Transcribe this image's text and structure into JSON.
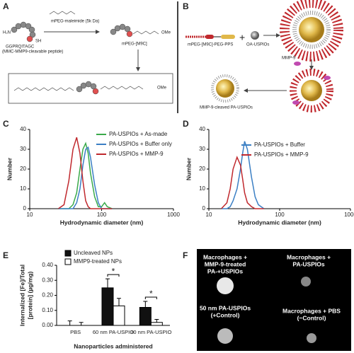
{
  "panels": {
    "a": {
      "label": "A",
      "h2n": "H₂N",
      "sh": "SH",
      "peptide": "GGPRQITAGC",
      "peptide_note": "(MMC-MMP9-cleavable peptide)",
      "reagent": "mPEG-maleimide (5k Da)",
      "product": "mPEG-[M9C]",
      "ome": "OMe"
    },
    "b": {
      "label": "B",
      "polymer": "mPEG-[M9C]-PEG-PPS",
      "plus": "+",
      "core": "OA-USPIOs",
      "enzyme": "MMP-9",
      "result": "MMP-9-cleaved PA-USPIOs"
    },
    "f": {
      "label": "F",
      "wells": [
        [
          "Macrophages +",
          "MMP-9-treated",
          "PA-+USPIOs"
        ],
        [
          "Macrophages +",
          "PA-USPIOs"
        ],
        [
          "50 nm PA-USPIOs",
          "(+Control)"
        ],
        [
          "Macrophages + PBS",
          "(−Control)"
        ]
      ]
    }
  },
  "chart_data": [
    {
      "type": "line",
      "label": "C",
      "xlabel": "Hydrodynamic diameter (nm)",
      "ylabel": "Number",
      "log_x": true,
      "xlim": [
        10,
        1000
      ],
      "xticks": [
        10,
        100,
        1000
      ],
      "ylim": [
        0,
        40
      ],
      "yticks": [
        0,
        10,
        20,
        30,
        40
      ],
      "x": [
        25,
        30,
        35,
        40,
        45,
        50,
        55,
        60,
        65,
        70,
        80,
        90,
        100,
        110,
        120,
        140
      ],
      "series": [
        {
          "name": "PA-USPIOs + As-made",
          "color": "#3aaa4a",
          "values": [
            0,
            0,
            0,
            2,
            8,
            20,
            30,
            33,
            28,
            18,
            6,
            1,
            1,
            3,
            1,
            0
          ]
        },
        {
          "name": "PA-USPIOs + Buffer only",
          "color": "#3b7fc4",
          "values": [
            0,
            0,
            0,
            0,
            3,
            10,
            22,
            30,
            31,
            26,
            12,
            3,
            0,
            0,
            0,
            0
          ]
        },
        {
          "name": "PA-USPIOs + MMP-9",
          "color": "#c0282d",
          "values": [
            0,
            2,
            14,
            30,
            36,
            28,
            14,
            4,
            1,
            0,
            0,
            0,
            0,
            0,
            0,
            0
          ]
        }
      ]
    },
    {
      "type": "line",
      "label": "D",
      "xlabel": "Hydrodynamic diameter (nm)",
      "ylabel": "Number",
      "log_x": true,
      "xlim": [
        10,
        1000
      ],
      "xticks": [
        10,
        100,
        1000
      ],
      "ylim": [
        0,
        40
      ],
      "yticks": [
        0,
        10,
        20,
        30,
        40
      ],
      "x": [
        15,
        18,
        20,
        22,
        25,
        28,
        30,
        32,
        35,
        40,
        45,
        50,
        60
      ],
      "series": [
        {
          "name": "PA-USPIOs + Buffer",
          "color": "#3b7fc4",
          "values": [
            0,
            0,
            1,
            4,
            10,
            20,
            28,
            34,
            30,
            16,
            6,
            2,
            0
          ]
        },
        {
          "name": "PA-USPIOs + MMP-9",
          "color": "#c0282d",
          "values": [
            0,
            3,
            10,
            20,
            26,
            22,
            15,
            8,
            3,
            1,
            0,
            0,
            0
          ]
        }
      ]
    },
    {
      "type": "bar",
      "label": "E",
      "xlabel": "Nanoparticles administered",
      "ylabel_lines": [
        "Internalized [Fe]/Total",
        "[protein] (µg/mg)"
      ],
      "categories": [
        "PBS",
        "60 nm PA-USPIO",
        "30 nm PA-USPIO"
      ],
      "ylim": [
        0,
        0.4
      ],
      "yticks": [
        {
          "value": 0,
          "label": "0.00"
        },
        {
          "value": 0.1,
          "label": "0.10"
        },
        {
          "value": 0.2,
          "label": "0.20"
        },
        {
          "value": 0.3,
          "label": "0.30"
        },
        {
          "value": 0.4,
          "label": "0.40"
        }
      ],
      "series": [
        {
          "name": "Uncleaved NPs",
          "color": "#111111",
          "values": [
            0,
            0.25,
            0.12
          ],
          "errors": [
            0.03,
            0.06,
            0.04
          ]
        },
        {
          "name": "MMP9-treated NPs",
          "color": "#ffffff",
          "values": [
            0,
            0.13,
            0.02
          ],
          "errors": [
            0.02,
            0.05,
            0.02
          ]
        }
      ],
      "annotations": [
        "*",
        "*"
      ]
    }
  ]
}
